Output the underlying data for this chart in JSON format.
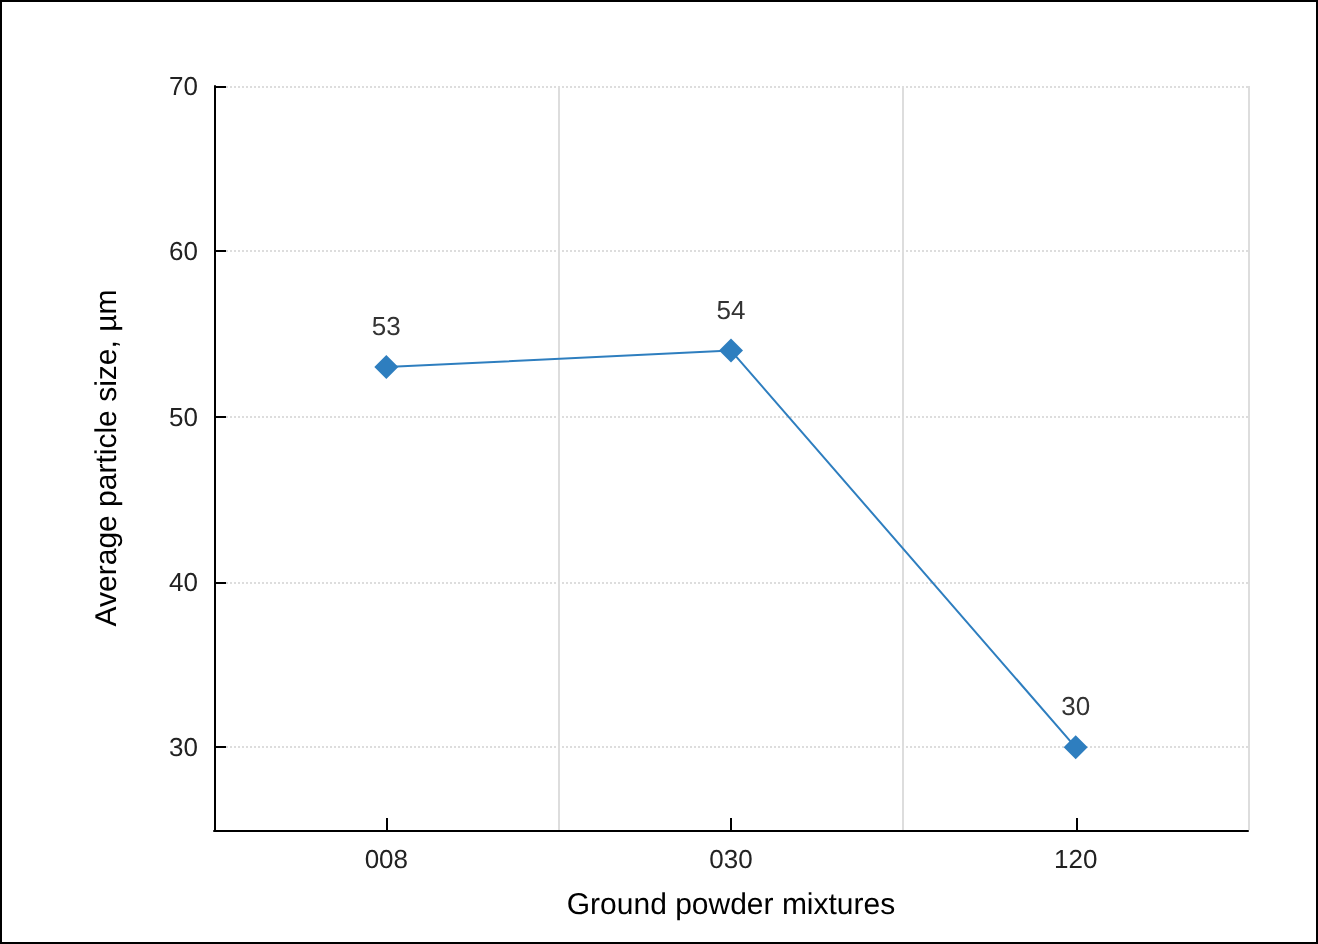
{
  "chart_data": {
    "type": "line",
    "xlabel": "Ground powder mixtures",
    "ylabel": "Average particle size, µm",
    "categories": [
      "008",
      "030",
      "120"
    ],
    "series": [
      {
        "color": "#2e7ebf",
        "values": [
          53,
          54,
          30
        ]
      }
    ],
    "ylim": [
      25,
      70
    ],
    "yticks": [
      30,
      40,
      50,
      60,
      70
    ],
    "grid": true,
    "marker": "diamond",
    "line_style": "solid",
    "data_labels": true
  }
}
